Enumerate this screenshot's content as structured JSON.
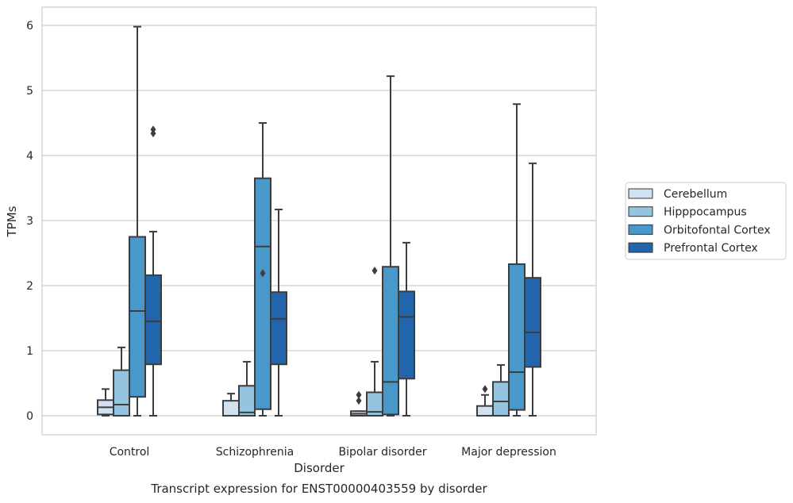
{
  "chart_data": {
    "type": "boxplot",
    "title": "Transcript expression for ENST00000403559 by disorder",
    "xlabel": "Disorder",
    "ylabel": "TPMs",
    "ylim": [
      -0.3,
      6.3
    ],
    "yticks": [
      0,
      1,
      2,
      3,
      4,
      5,
      6
    ],
    "grid": "horizontal",
    "legend_position": "right",
    "categories": [
      "Control",
      "Schizophrenia",
      "Bipolar disorder",
      "Major depression"
    ],
    "series": [
      {
        "name": "Cerebellum",
        "color": "#d0e1f2",
        "boxes": [
          {
            "whislo": 0.0,
            "q1": 0.02,
            "med": 0.13,
            "q3": 0.24,
            "whishi": 0.41,
            "fliers": []
          },
          {
            "whislo": 0.0,
            "q1": 0.0,
            "med": 0.0,
            "q3": 0.23,
            "whishi": 0.34,
            "fliers": []
          },
          {
            "whislo": 0.0,
            "q1": 0.0,
            "med": 0.03,
            "q3": 0.07,
            "whishi": 0.07,
            "fliers": [
              0.23,
              0.32
            ]
          },
          {
            "whislo": 0.0,
            "q1": 0.0,
            "med": 0.0,
            "q3": 0.15,
            "whishi": 0.32,
            "fliers": [
              0.41
            ]
          }
        ]
      },
      {
        "name": "Hipppocampus",
        "color": "#94c4df",
        "boxes": [
          {
            "whislo": 0.0,
            "q1": 0.0,
            "med": 0.17,
            "q3": 0.7,
            "whishi": 1.05,
            "fliers": []
          },
          {
            "whislo": 0.0,
            "q1": 0.0,
            "med": 0.05,
            "q3": 0.46,
            "whishi": 0.83,
            "fliers": []
          },
          {
            "whislo": 0.0,
            "q1": 0.0,
            "med": 0.06,
            "q3": 0.36,
            "whishi": 0.83,
            "fliers": [
              2.23
            ]
          },
          {
            "whislo": 0.0,
            "q1": 0.0,
            "med": 0.22,
            "q3": 0.52,
            "whishi": 0.78,
            "fliers": []
          }
        ]
      },
      {
        "name": "Orbitofontal Cortex",
        "color": "#4a98c9",
        "boxes": [
          {
            "whislo": 0.0,
            "q1": 0.29,
            "med": 1.61,
            "q3": 2.75,
            "whishi": 5.98,
            "fliers": []
          },
          {
            "whislo": 0.0,
            "q1": 0.1,
            "med": 2.6,
            "q3": 3.65,
            "whishi": 4.5,
            "fliers": [
              2.19
            ]
          },
          {
            "whislo": 0.0,
            "q1": 0.02,
            "med": 0.52,
            "q3": 2.29,
            "whishi": 5.22,
            "fliers": []
          },
          {
            "whislo": 0.0,
            "q1": 0.09,
            "med": 0.67,
            "q3": 2.33,
            "whishi": 4.79,
            "fliers": []
          }
        ]
      },
      {
        "name": "Prefrontal Cortex",
        "color": "#2166ac",
        "boxes": [
          {
            "whislo": 0.0,
            "q1": 0.79,
            "med": 1.45,
            "q3": 2.16,
            "whishi": 2.83,
            "fliers": [
              4.34,
              4.4
            ]
          },
          {
            "whislo": 0.0,
            "q1": 0.79,
            "med": 1.49,
            "q3": 1.9,
            "whishi": 3.17,
            "fliers": []
          },
          {
            "whislo": 0.0,
            "q1": 0.57,
            "med": 1.52,
            "q3": 1.91,
            "whishi": 2.66,
            "fliers": []
          },
          {
            "whislo": 0.0,
            "q1": 0.75,
            "med": 1.28,
            "q3": 2.12,
            "whishi": 3.88,
            "fliers": []
          }
        ]
      }
    ]
  }
}
